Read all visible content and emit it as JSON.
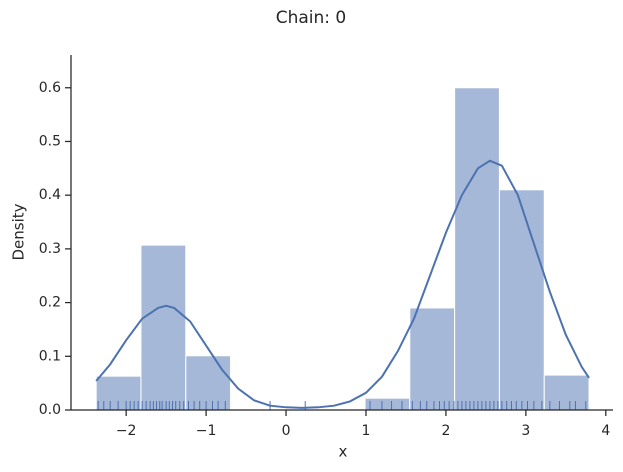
{
  "chart_data": {
    "type": "histogram",
    "title": "Chain: 0",
    "x_label": "x",
    "y_label": "Density",
    "bins": [
      -2.375,
      -1.815,
      -1.254,
      -0.694,
      -0.133,
      0.427,
      0.988,
      1.548,
      2.109,
      2.669,
      3.23,
      3.79
    ],
    "values": [
      0.063,
      0.307,
      0.101,
      0,
      0,
      0,
      0.022,
      0.19,
      0.6,
      0.41,
      0.065
    ],
    "color": "#a5b8d8",
    "kde": {
      "color": "#4c72b0",
      "x": [
        -2.375,
        -2.2,
        -2.0,
        -1.8,
        -1.6,
        -1.5,
        -1.4,
        -1.2,
        -1.0,
        -0.8,
        -0.6,
        -0.4,
        -0.2,
        0.0,
        0.2,
        0.4,
        0.6,
        0.8,
        1.0,
        1.2,
        1.4,
        1.6,
        1.8,
        2.0,
        2.2,
        2.4,
        2.55,
        2.7,
        2.9,
        3.1,
        3.3,
        3.5,
        3.7,
        3.79
      ],
      "values": [
        0.054,
        0.085,
        0.13,
        0.17,
        0.19,
        0.194,
        0.19,
        0.165,
        0.12,
        0.075,
        0.04,
        0.018,
        0.008,
        0.005,
        0.004,
        0.005,
        0.008,
        0.016,
        0.032,
        0.062,
        0.11,
        0.17,
        0.25,
        0.33,
        0.4,
        0.45,
        0.464,
        0.455,
        0.4,
        0.31,
        0.22,
        0.14,
        0.08,
        0.06
      ]
    },
    "rug": [
      -2.35,
      -2.28,
      -2.2,
      -2.1,
      -2.0,
      -1.95,
      -1.9,
      -1.85,
      -1.8,
      -1.75,
      -1.7,
      -1.66,
      -1.62,
      -1.58,
      -1.55,
      -1.5,
      -1.46,
      -1.42,
      -1.38,
      -1.33,
      -1.28,
      -1.22,
      -1.15,
      -1.08,
      -1.0,
      -0.92,
      -0.85,
      -0.76,
      -0.2,
      0.24,
      1.05,
      1.2,
      1.32,
      1.45,
      1.58,
      1.68,
      1.76,
      1.85,
      1.92,
      1.98,
      2.04,
      2.1,
      2.15,
      2.2,
      2.25,
      2.3,
      2.35,
      2.4,
      2.45,
      2.5,
      2.55,
      2.6,
      2.65,
      2.7,
      2.76,
      2.82,
      2.88,
      2.95,
      3.02,
      3.1,
      3.2,
      3.3,
      3.42,
      3.55,
      3.62,
      3.75
    ],
    "xlim": [
      -2.69,
      4.09
    ],
    "ylim": [
      0,
      0.661
    ],
    "xticks": [
      {
        "value": -2,
        "label": "−2"
      },
      {
        "value": -1,
        "label": "−1"
      },
      0,
      1,
      2,
      3,
      4
    ],
    "yticks": [
      {
        "value": 0,
        "label": "0.0"
      },
      0.1,
      0.2,
      0.3,
      0.4,
      0.5,
      0.6
    ]
  }
}
